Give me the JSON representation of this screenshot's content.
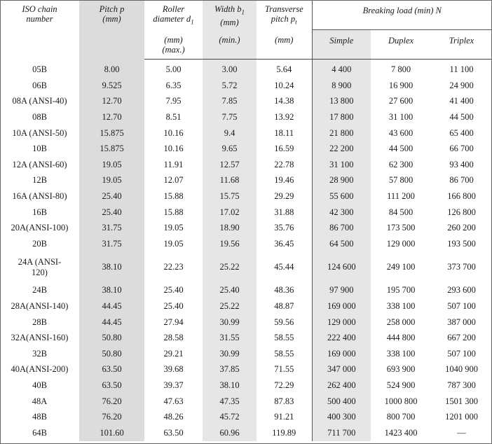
{
  "header": {
    "iso": [
      "ISO chain",
      "number"
    ],
    "pitch": [
      "Pitch p",
      "(mm)"
    ],
    "roller": [
      "Roller",
      "diameter d",
      "1"
    ],
    "roller_unit": [
      "(mm)",
      "(max.)"
    ],
    "width": [
      "Width b",
      "1",
      "(mm)"
    ],
    "width_unit": "(min.)",
    "transverse": [
      "Transverse",
      "pitch p",
      "t"
    ],
    "transverse_unit": "(mm)",
    "breaking": "Breaking load (min) N",
    "simple": "Simple",
    "duplex": "Duplex",
    "triplex": "Triplex"
  },
  "rows": [
    [
      "05B",
      "8.00",
      "5.00",
      "3.00",
      "5.64",
      "4 400",
      "7 800",
      "11 100"
    ],
    [
      "06B",
      "9.525",
      "6.35",
      "5.72",
      "10.24",
      "8 900",
      "16 900",
      "24 900"
    ],
    [
      "08A (ANSI-40)",
      "12.70",
      "7.95",
      "7.85",
      "14.38",
      "13 800",
      "27 600",
      "41 400"
    ],
    [
      "08B",
      "12.70",
      "8.51",
      "7.75",
      "13.92",
      "17 800",
      "31 100",
      "44 500"
    ],
    [
      "10A (ANSI-50)",
      "15.875",
      "10.16",
      "9.4",
      "18.11",
      "21 800",
      "43 600",
      "65 400"
    ],
    [
      "10B",
      "15.875",
      "10.16",
      "9.65",
      "16.59",
      "22 200",
      "44 500",
      "66 700"
    ],
    [
      "12A (ANSI-60)",
      "19.05",
      "11.91",
      "12.57",
      "22.78",
      "31 100",
      "62 300",
      "93 400"
    ],
    [
      "12B",
      "19.05",
      "12.07",
      "11.68",
      "19.46",
      "28 900",
      "57 800",
      "86 700"
    ],
    [
      "16A (ANSI-80)",
      "25.40",
      "15.88",
      "15.75",
      "29.29",
      "55 600",
      "111 200",
      "166 800"
    ],
    [
      "16B",
      "25.40",
      "15.88",
      "17.02",
      "31.88",
      "42 300",
      "84 500",
      "126 800"
    ],
    [
      "20A(ANSI-100)",
      "31.75",
      "19.05",
      "18.90",
      "35.76",
      "86 700",
      "173 500",
      "260 200"
    ],
    [
      "20B",
      "31.75",
      "19.05",
      "19.56",
      "36.45",
      "64 500",
      "129 000",
      "193 500"
    ],
    [
      "24A (ANSI-\n120)",
      "38.10",
      "22.23",
      "25.22",
      "45.44",
      "124 600",
      "249 100",
      "373 700"
    ],
    [
      "24B",
      "38.10",
      "25.40",
      "25.40",
      "48.36",
      "97 900",
      "195 700",
      "293 600"
    ],
    [
      "28A(ANSI-140)",
      "44.45",
      "25.40",
      "25.22",
      "48.87",
      "169 000",
      "338 100",
      "507 100"
    ],
    [
      "28B",
      "44.45",
      "27.94",
      "30.99",
      "59.56",
      "129 000",
      "258 000",
      "387 000"
    ],
    [
      "32A(ANSI-160)",
      "50.80",
      "28.58",
      "31.55",
      "58.55",
      "222 400",
      "444 800",
      "667 200"
    ],
    [
      "32B",
      "50.80",
      "29.21",
      "30.99",
      "58.55",
      "169 000",
      "338 100",
      "507 100"
    ],
    [
      "40A(ANSI-200)",
      "63.50",
      "39.68",
      "37.85",
      "71.55",
      "347 000",
      "693 900",
      "1040 900"
    ],
    [
      "40B",
      "63.50",
      "39.37",
      "38.10",
      "72.29",
      "262 400",
      "524 900",
      "787 300"
    ],
    [
      "48A",
      "76.20",
      "47.63",
      "47.35",
      "87.83",
      "500 400",
      "1000 800",
      "1501 300"
    ],
    [
      "48B",
      "76.20",
      "48.26",
      "45.72",
      "91.21",
      "400 300",
      "800 700",
      "1201 000"
    ],
    [
      "64B",
      "101.60",
      "63.50",
      "60.96",
      "119.89",
      "711 700",
      "1423 400",
      "—"
    ]
  ]
}
